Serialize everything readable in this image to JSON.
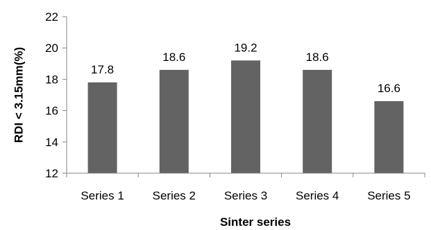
{
  "chart_data": {
    "type": "bar",
    "title": "",
    "xlabel": "Sinter series",
    "ylabel": "RDI < 3.15mm(%)",
    "categories": [
      "Series 1",
      "Series 2",
      "Series 3",
      "Series 4",
      "Series 5"
    ],
    "values": [
      17.8,
      18.6,
      19.2,
      18.6,
      16.6
    ],
    "data_labels": [
      "17.8",
      "18.6",
      "19.2",
      "18.6",
      "16.6"
    ],
    "ylim": [
      12,
      22
    ],
    "yticks": [
      12,
      14,
      16,
      18,
      20,
      22
    ],
    "ytick_labels": [
      "12",
      "14",
      "16",
      "18",
      "20",
      "22"
    ],
    "grid": false,
    "legend": "none",
    "bar_color": "#636363",
    "axis_color": "#868686"
  }
}
